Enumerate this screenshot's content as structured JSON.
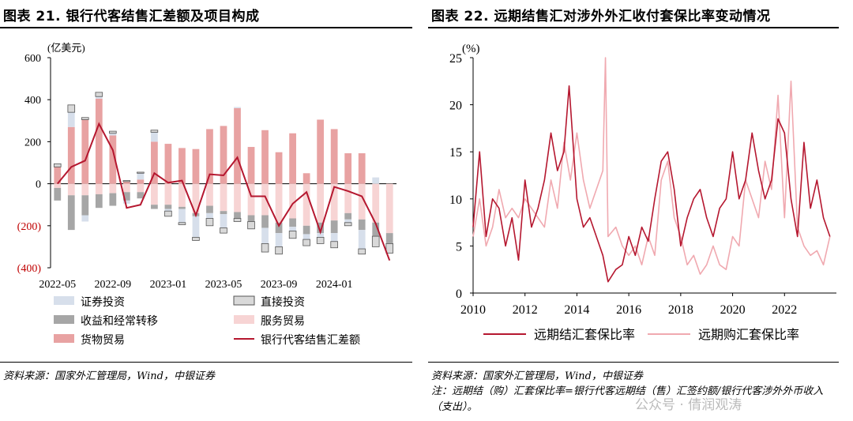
{
  "left_panel": {
    "title": "图表 21. 银行代客结售汇差额及项目构成",
    "source": "资料来源：国家外汇管理局，Wind，中银证券"
  },
  "right_panel": {
    "title": "图表 22. 远期结售汇对涉外外汇收付套保比率变动情况",
    "source": "资料来源：国家外汇管理局，Wind，中银证券",
    "note": "注：远期结（购）汇套保比率=银行代客远期结（售）汇签约额/银行代客涉外外币收入（支出）。",
    "watermark": "公众号 · 倩润观涛"
  },
  "chart_data": [
    {
      "type": "bar",
      "title": "银行代客结售汇差额及项目构成",
      "ylabel": "(亿美元)",
      "ylim": [
        -400,
        600
      ],
      "yticks": [
        600,
        400,
        200,
        0,
        -200,
        -400
      ],
      "ytick_labels": [
        "600",
        "400",
        "200",
        "0",
        "(200)",
        "(400)"
      ],
      "categories": [
        "2022-05",
        "2022-06",
        "2022-07",
        "2022-08",
        "2022-09",
        "2022-10",
        "2022-11",
        "2022-12",
        "2023-01",
        "2023-02",
        "2023-03",
        "2023-04",
        "2023-05",
        "2023-06",
        "2023-07",
        "2023-08",
        "2023-09",
        "2023-10",
        "2023-11",
        "2023-12",
        "2024-01",
        "2024-02",
        "2024-03",
        "2024-04",
        "2024-05"
      ],
      "xtick_labels": [
        "2022-05",
        "2022-09",
        "2023-01",
        "2023-05",
        "2023-09",
        "2024-01"
      ],
      "series": [
        {
          "name": "货物贸易",
          "color": "#e8a2a2",
          "values": [
            80,
            270,
            305,
            405,
            230,
            10,
            20,
            200,
            190,
            170,
            165,
            260,
            275,
            360,
            175,
            255,
            150,
            240,
            50,
            305,
            260,
            145,
            145,
            0,
            0
          ]
        },
        {
          "name": "服务贸易",
          "color": "#f7d4d4",
          "values": [
            -20,
            -55,
            -55,
            -50,
            -45,
            -40,
            -40,
            -100,
            -100,
            -110,
            -140,
            -105,
            -130,
            -135,
            -150,
            -150,
            -185,
            -165,
            -200,
            -185,
            -175,
            -140,
            -170,
            -185,
            -235
          ]
        },
        {
          "name": "收益和经常转移",
          "color": "#a6a6a6",
          "values": [
            -60,
            -165,
            -95,
            -65,
            -60,
            -40,
            -30,
            -20,
            -20,
            -10,
            -15,
            -35,
            -15,
            -30,
            -30,
            -60,
            -50,
            -40,
            -40,
            -50,
            -60,
            -30,
            -50,
            -65,
            -50
          ]
        },
        {
          "name": "证券投资",
          "color": "#d7dfeb",
          "values": [
            0,
            70,
            -30,
            10,
            10,
            -15,
            30,
            45,
            -10,
            -65,
            -100,
            -25,
            -65,
            5,
            0,
            -75,
            -65,
            -20,
            -25,
            -20,
            -40,
            -15,
            -90,
            30,
            0
          ]
        },
        {
          "name": "直接投资",
          "color": "#d9d9d9",
          "values": [
            15,
            35,
            10,
            20,
            10,
            5,
            5,
            10,
            -25,
            -10,
            -15,
            -35,
            -25,
            -15,
            -35,
            -40,
            -35,
            -35,
            -30,
            -30,
            -30,
            -15,
            -25,
            -50,
            -45
          ]
        }
      ],
      "line": {
        "name": "银行代客结售汇差额",
        "color": "#b5172f",
        "values": [
          0,
          80,
          110,
          285,
          160,
          -115,
          -100,
          50,
          5,
          15,
          -150,
          45,
          40,
          125,
          -60,
          -60,
          -200,
          -95,
          -40,
          -230,
          -15,
          -35,
          -60,
          -190,
          -365
        ]
      },
      "legend": [
        "证券投资",
        "直接投资",
        "收益和经常转移",
        "服务贸易",
        "货物贸易",
        "银行代客结售汇差额"
      ]
    },
    {
      "type": "line",
      "title": "远期结售汇对涉外外汇收付套保比率变动情况",
      "ylabel": "(%)",
      "ylim": [
        0,
        25
      ],
      "yticks": [
        0,
        5,
        10,
        15,
        20,
        25
      ],
      "xlim": [
        2010,
        2024
      ],
      "xticks": [
        2010,
        2012,
        2014,
        2016,
        2018,
        2020,
        2022
      ],
      "series": [
        {
          "name": "远期结汇套保比率",
          "color": "#b5172f",
          "x": [
            2010.0,
            2010.25,
            2010.5,
            2010.75,
            2011.0,
            2011.25,
            2011.5,
            2011.75,
            2012.0,
            2012.25,
            2012.5,
            2012.75,
            2013.0,
            2013.25,
            2013.5,
            2013.7,
            2014.0,
            2014.25,
            2014.5,
            2014.75,
            2015.0,
            2015.2,
            2015.5,
            2015.75,
            2016.0,
            2016.25,
            2016.5,
            2016.75,
            2017.0,
            2017.25,
            2017.5,
            2017.75,
            2018.0,
            2018.25,
            2018.5,
            2018.75,
            2019.0,
            2019.25,
            2019.5,
            2019.75,
            2020.0,
            2020.25,
            2020.5,
            2020.75,
            2021.0,
            2021.25,
            2021.5,
            2021.75,
            2022.0,
            2022.25,
            2022.5,
            2022.75,
            2023.0,
            2023.25,
            2023.5,
            2023.75
          ],
          "y": [
            7,
            15,
            6,
            10,
            9,
            5,
            8,
            3.5,
            12,
            7,
            9,
            12,
            17,
            13,
            15,
            22,
            10,
            7,
            8,
            6,
            4,
            1.2,
            2.5,
            3,
            6,
            4,
            7,
            5.5,
            10,
            14,
            15,
            11,
            5,
            8,
            10,
            11,
            8,
            6,
            9,
            10,
            15,
            10,
            12,
            17,
            13,
            10,
            12,
            18.5,
            17,
            10,
            6,
            16,
            9,
            12,
            8,
            6
          ]
        },
        {
          "name": "远期购汇套保比率",
          "color": "#f0a9b0",
          "x": [
            2010.0,
            2010.25,
            2010.5,
            2010.75,
            2011.0,
            2011.25,
            2011.5,
            2011.75,
            2012.0,
            2012.25,
            2012.5,
            2012.75,
            2013.0,
            2013.25,
            2013.5,
            2013.75,
            2014.0,
            2014.25,
            2014.5,
            2014.75,
            2015.0,
            2015.1,
            2015.2,
            2015.5,
            2015.75,
            2016.0,
            2016.25,
            2016.5,
            2016.75,
            2017.0,
            2017.25,
            2017.5,
            2017.75,
            2018.0,
            2018.25,
            2018.5,
            2018.75,
            2019.0,
            2019.25,
            2019.5,
            2019.75,
            2020.0,
            2020.25,
            2020.5,
            2020.75,
            2021.0,
            2021.25,
            2021.5,
            2021.75,
            2022.0,
            2022.25,
            2022.5,
            2022.75,
            2023.0,
            2023.25,
            2023.5,
            2023.75
          ],
          "y": [
            6,
            10,
            5,
            7,
            11,
            8,
            9,
            8,
            10,
            9,
            8,
            7,
            12,
            9,
            16,
            12,
            17,
            12,
            9,
            11,
            13,
            25,
            6,
            7,
            5,
            4,
            5,
            3,
            6,
            4,
            12,
            14,
            8,
            6,
            3,
            4,
            2,
            3,
            5,
            3,
            2.5,
            6,
            5,
            12,
            10,
            8,
            14,
            11,
            21,
            8,
            22.5,
            7,
            5,
            4,
            4.5,
            3,
            6
          ]
        }
      ]
    }
  ]
}
